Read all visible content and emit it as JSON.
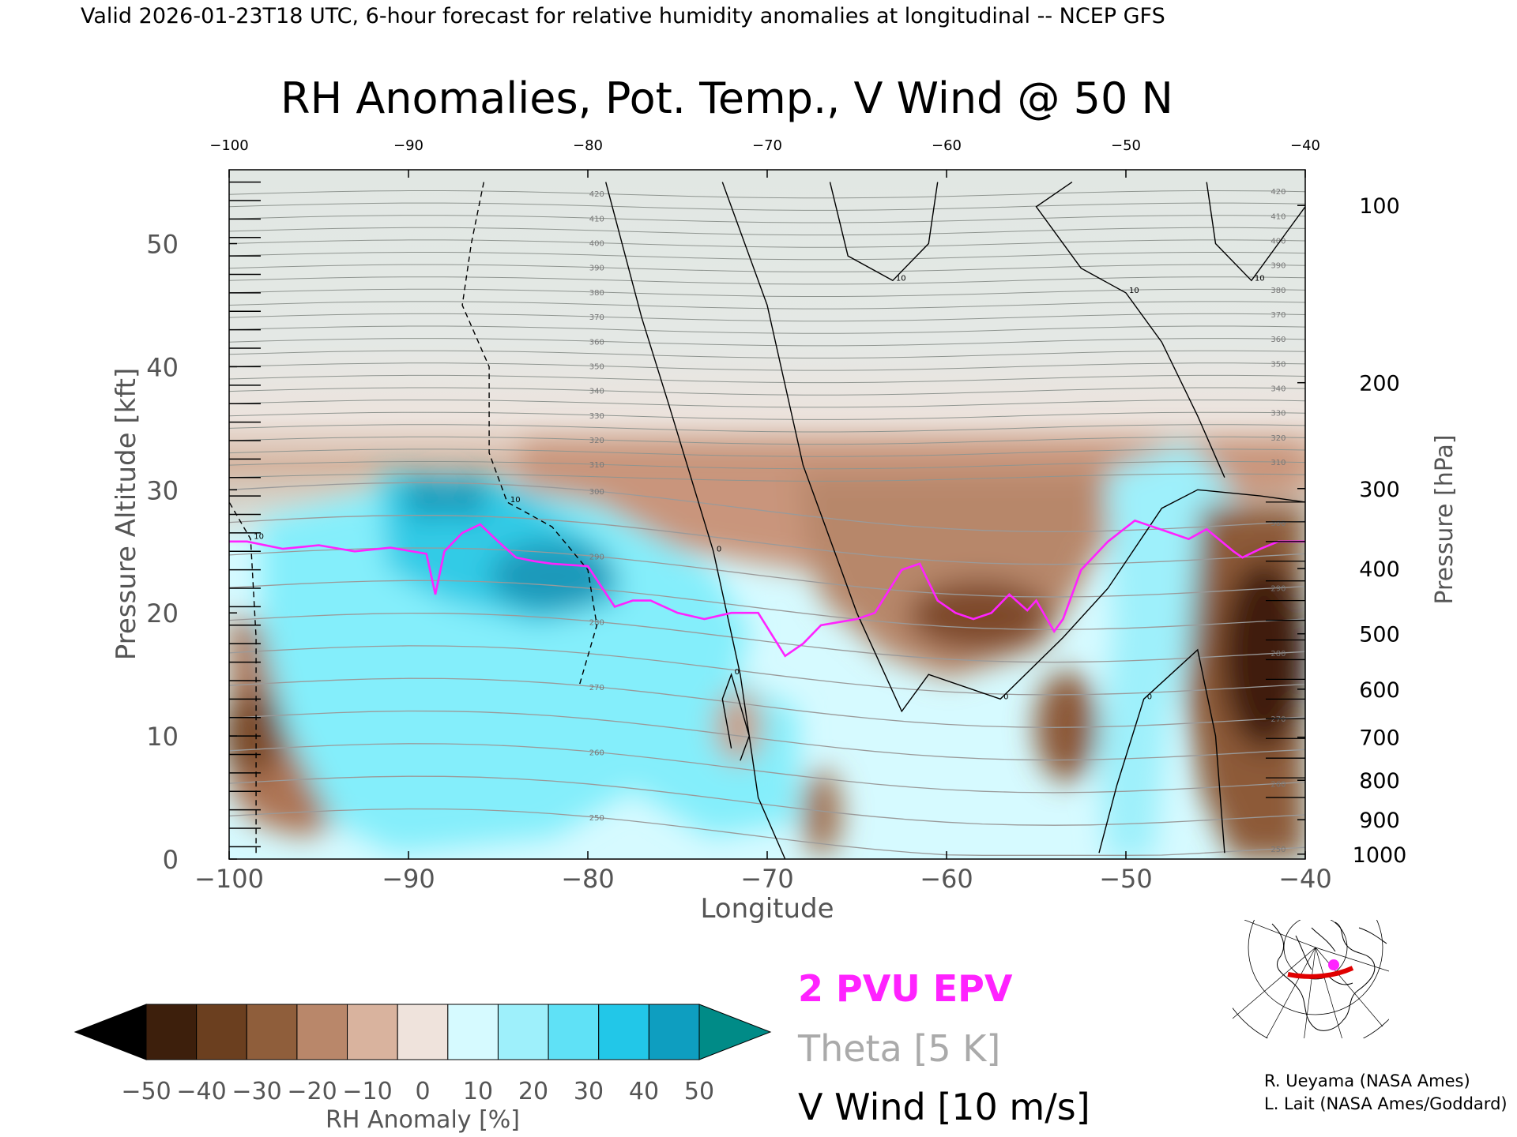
{
  "header": {
    "valid_line": "Valid 2026-01-23T18 UTC, 6-hour forecast for relative humidity anomalies at longitudinal -- NCEP GFS"
  },
  "chart_data": {
    "type": "heatmap",
    "title": "RH Anomalies, Pot. Temp., V Wind @ 50 N",
    "xlabel": "Longitude",
    "ylabel_left": "Pressure Altitude [kft]",
    "ylabel_right": "Pressure [hPa]",
    "xlim": [
      -100,
      -40
    ],
    "ylim_kft": [
      0,
      56
    ],
    "x_ticks": [
      -100,
      -90,
      -80,
      -70,
      -60,
      -50,
      -40
    ],
    "x_tick_labels": [
      "−100",
      "−90",
      "−80",
      "−70",
      "−60",
      "−50",
      "−40"
    ],
    "x_ticks_top": [
      -100,
      -90,
      -80,
      -70,
      -60,
      -50,
      -40
    ],
    "x_tick_labels_top": [
      "−100",
      "−90",
      "−80",
      "−70",
      "−60",
      "−50",
      "−40"
    ],
    "y_ticks_kft": [
      0,
      10,
      20,
      30,
      40,
      50
    ],
    "y_tick_labels_kft": [
      "0",
      "10",
      "20",
      "30",
      "40",
      "50"
    ],
    "pressure_ticks": [
      {
        "label": "100",
        "kft": 53.1
      },
      {
        "label": "200",
        "kft": 38.7
      },
      {
        "label": "300",
        "kft": 30.1
      },
      {
        "label": "400",
        "kft": 23.6
      },
      {
        "label": "500",
        "kft": 18.3
      },
      {
        "label": "600",
        "kft": 13.8
      },
      {
        "label": "700",
        "kft": 9.9
      },
      {
        "label": "800",
        "kft": 6.4
      },
      {
        "label": "900",
        "kft": 3.2
      },
      {
        "label": "1000",
        "kft": 0.4
      }
    ],
    "theta_levels_K": [
      250,
      255,
      260,
      265,
      270,
      275,
      280,
      285,
      290,
      295,
      300,
      305,
      310,
      315,
      320,
      325,
      330,
      335,
      340,
      345,
      350,
      355,
      360,
      365,
      370,
      375,
      380,
      385,
      390,
      395,
      400,
      405,
      410,
      415,
      420
    ],
    "theta_labels": [
      "250",
      "260",
      "270",
      "280",
      "290",
      "300",
      "310",
      "320",
      "330",
      "340",
      "350",
      "360",
      "370",
      "380",
      "390",
      "400",
      "410",
      "420"
    ],
    "rh_anomaly_regions": [
      {
        "lon": [
          -100,
          -97
        ],
        "kft": [
          2,
          18
        ],
        "anomaly": -40
      },
      {
        "lon": [
          -90,
          -86
        ],
        "kft": [
          26,
          31
        ],
        "anomaly": 40
      },
      {
        "lon": [
          -86,
          -78
        ],
        "kft": [
          18,
          26
        ],
        "anomaly": 40
      },
      {
        "lon": [
          -96,
          -72
        ],
        "kft": [
          2,
          18
        ],
        "anomaly": 20
      },
      {
        "lon": [
          -82,
          -40
        ],
        "kft": [
          28,
          34
        ],
        "anomaly": -20
      },
      {
        "lon": [
          -64,
          -55
        ],
        "kft": [
          15,
          30
        ],
        "anomaly": -40
      },
      {
        "lon": [
          -54,
          -51
        ],
        "kft": [
          5,
          16
        ],
        "anomaly": -40
      },
      {
        "lon": [
          -45,
          -40
        ],
        "kft": [
          2,
          24
        ],
        "anomaly": -50
      },
      {
        "lon": [
          -51,
          -46
        ],
        "kft": [
          0,
          28
        ],
        "anomaly": 20
      }
    ],
    "pvu_2_line": {
      "lon": [
        -100,
        -99,
        -97,
        -95,
        -93,
        -91,
        -89,
        -88.5,
        -88,
        -87,
        -86,
        -85,
        -84,
        -83,
        -82,
        -80,
        -78.5,
        -77.5,
        -76.5,
        -75,
        -73.5,
        -72,
        -70.5,
        -69,
        -68,
        -67,
        -65,
        -64,
        -62.5,
        -61.5,
        -60.5,
        -59.5,
        -58.5,
        -57.5,
        -56.5,
        -55.5,
        -55,
        -54,
        -53.5,
        -52.5,
        -51,
        -49.5,
        -47.5,
        -46.5,
        -45.5,
        -44,
        -43.5,
        -42.5,
        -41.5,
        -40
      ],
      "kft": [
        25.8,
        25.8,
        25.2,
        25.5,
        25,
        25.3,
        24.8,
        21.5,
        25,
        26.5,
        27.2,
        25.8,
        24.5,
        24.2,
        24,
        23.8,
        20.5,
        21,
        21,
        20,
        19.5,
        20,
        20,
        16.5,
        17.5,
        19,
        19.5,
        20,
        23.5,
        24,
        21,
        20,
        19.5,
        20,
        21.5,
        20.2,
        21,
        18.5,
        19.5,
        23.5,
        25.8,
        27.5,
        26.5,
        26,
        26.8,
        25,
        24.5,
        25.2,
        25.8,
        25.8
      ]
    },
    "v_wind_contours": [
      {
        "level": 10,
        "style": "dashed",
        "points": [
          [
            -98.5,
            0.5
          ],
          [
            -98.5,
            18
          ],
          [
            -98.8,
            26
          ],
          [
            -100,
            29
          ]
        ]
      },
      {
        "level": 10,
        "style": "dashed",
        "points": [
          [
            -85.8,
            55
          ],
          [
            -86.5,
            50
          ],
          [
            -87,
            45
          ],
          [
            -85.5,
            40
          ],
          [
            -85.5,
            33
          ],
          [
            -84.5,
            29
          ],
          [
            -82,
            27
          ],
          [
            -80,
            23.5
          ],
          [
            -79.5,
            19
          ],
          [
            -80.5,
            14
          ]
        ]
      },
      {
        "level": 0,
        "style": "solid",
        "points": [
          [
            -79,
            55
          ],
          [
            -77,
            44
          ],
          [
            -75.5,
            37
          ],
          [
            -73,
            25
          ],
          [
            -71.5,
            15
          ],
          [
            -70.5,
            5
          ],
          [
            -69,
            0
          ]
        ]
      },
      {
        "level": 0,
        "style": "solid",
        "points": [
          [
            -72.5,
            55
          ],
          [
            -70,
            45
          ],
          [
            -68,
            32
          ],
          [
            -65,
            20
          ],
          [
            -62.5,
            12
          ],
          [
            -61,
            15
          ],
          [
            -57,
            13
          ],
          [
            -53.5,
            18
          ],
          [
            -51,
            22
          ],
          [
            -48,
            28.5
          ],
          [
            -46,
            30
          ],
          [
            -42.5,
            29.5
          ],
          [
            -40,
            29
          ]
        ]
      },
      {
        "level": 10,
        "style": "solid",
        "points": [
          [
            -66.5,
            55
          ],
          [
            -65.5,
            49
          ],
          [
            -63,
            47
          ],
          [
            -61,
            50
          ],
          [
            -60.5,
            55
          ]
        ]
      },
      {
        "level": 10,
        "style": "solid",
        "points": [
          [
            -53,
            55
          ],
          [
            -55,
            53
          ],
          [
            -52.5,
            48
          ],
          [
            -50,
            46
          ],
          [
            -48,
            42
          ],
          [
            -46,
            36
          ],
          [
            -44.5,
            31
          ]
        ]
      },
      {
        "level": 10,
        "style": "solid",
        "points": [
          [
            -45.5,
            55
          ],
          [
            -45,
            50
          ],
          [
            -43,
            47
          ],
          [
            -41,
            51
          ],
          [
            -40,
            53
          ]
        ]
      },
      {
        "level": 0,
        "style": "solid",
        "points": [
          [
            -44.5,
            0.5
          ],
          [
            -45,
            10
          ],
          [
            -46,
            17
          ],
          [
            -49,
            13
          ],
          [
            -50.5,
            6
          ],
          [
            -51.5,
            0.5
          ]
        ]
      },
      {
        "level": 0,
        "style": "solid",
        "points": [
          [
            -72,
            9
          ],
          [
            -72.5,
            13
          ],
          [
            -72,
            15
          ],
          [
            -71,
            10
          ],
          [
            -71.5,
            8
          ]
        ]
      }
    ],
    "colorbar": {
      "label": "RH Anomaly [%]",
      "ticks": [
        "−50",
        "−40",
        "−30",
        "−20",
        "−10",
        "0",
        "10",
        "20",
        "30",
        "40",
        "50"
      ],
      "colors": [
        "#000000",
        "#3d1f0c",
        "#6b3f1f",
        "#8f5e3b",
        "#b9876a",
        "#d9b39e",
        "#efe3dc",
        "#d6faff",
        "#9ef0fb",
        "#5fe1f6",
        "#22c7e8",
        "#0e9ec0",
        "#008b87"
      ]
    },
    "legend": [
      "2 PVU EPV",
      "Theta [5 K]",
      "V Wind [10 m/s]"
    ],
    "legend_colors": [
      "#ff22ff",
      "#aaaaaa",
      "#000000"
    ],
    "location_map_marker_lon": -45
  },
  "credits": {
    "line1": "R. Ueyama (NASA Ames)",
    "line2": "L. Lait (NASA Ames/Goddard)"
  }
}
